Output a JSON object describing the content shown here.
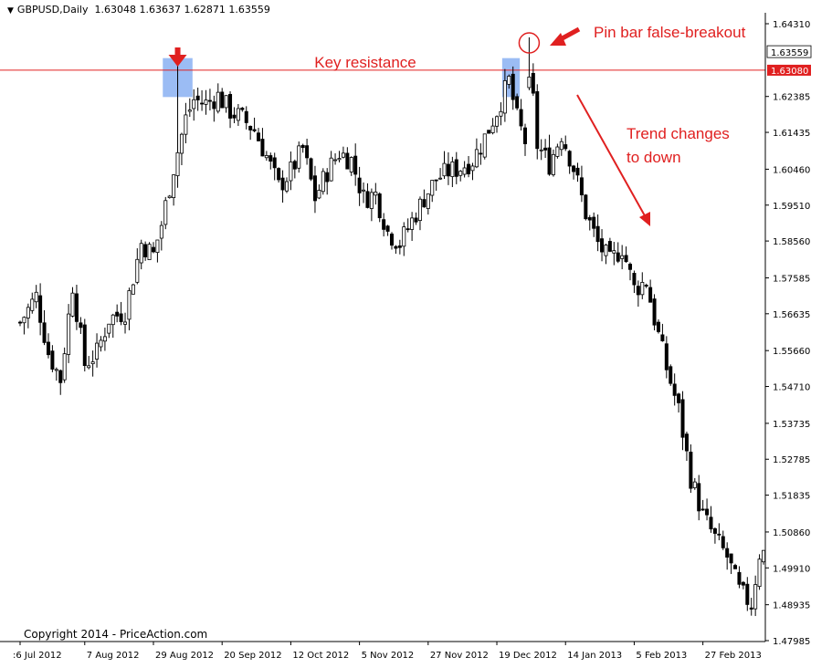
{
  "header": {
    "symbol": "GBPUSD,Daily",
    "ohlc": "1.63048 1.63637 1.62871 1.63559",
    "menu_icon": "triangle-down-icon"
  },
  "copyright": "Copyright 2014 - PriceAction.com",
  "colors": {
    "candle": "#000000",
    "resistance": "#e02020",
    "annotation": "#e02020",
    "highlight": "#7aa5f0",
    "price_label_bg": "#e02020"
  },
  "chart_data": {
    "type": "candlestick",
    "symbol": "GBPUSD",
    "timeframe": "Daily",
    "ylim": [
      1.4795,
      1.644
    ],
    "yticks": [
      "1.64310",
      "1.63559",
      "1.63080",
      "1.62385",
      "1.61435",
      "1.60460",
      "1.59510",
      "1.58560",
      "1.57585",
      "1.56635",
      "1.55660",
      "1.54710",
      "1.53735",
      "1.52785",
      "1.51835",
      "1.50860",
      "1.49910",
      "1.48935",
      "1.47985"
    ],
    "ytick_values": [
      1.6431,
      1.63559,
      1.6308,
      1.62385,
      1.61435,
      1.6046,
      1.5951,
      1.5856,
      1.57585,
      1.56635,
      1.5566,
      1.5471,
      1.53735,
      1.52785,
      1.51835,
      1.5086,
      1.4991,
      1.48935,
      1.47985
    ],
    "xticks": [
      ":6 Jul 2012",
      "7 Aug 2012",
      "29 Aug 2012",
      "20 Sep 2012",
      "12 Oct 2012",
      "5 Nov 2012",
      "27 Nov 2012",
      "19 Dec 2012",
      "14 Jan 2013",
      "5 Feb 2013",
      "27 Feb 2013"
    ],
    "xtick_index": [
      0,
      16,
      33,
      50,
      67,
      84,
      101,
      118,
      135,
      152,
      169
    ],
    "grid": false,
    "current_price": "1.63559",
    "resistance_level": 1.6308,
    "resistance_label": "1.63080",
    "annotations": {
      "key_resistance": "Key resistance",
      "pin_bar": "Pin bar false-breakout",
      "trend_line1": "Trend changes",
      "trend_line2": "to down"
    },
    "highlight_indices": [
      [
        36,
        42
      ],
      [
        120,
        123
      ]
    ],
    "pin_bar_index": 126,
    "close_path": [
      [
        0,
        1.564
      ],
      [
        4,
        1.571
      ],
      [
        7,
        1.556
      ],
      [
        10,
        1.549
      ],
      [
        13,
        1.574
      ],
      [
        16,
        1.553
      ],
      [
        19,
        1.556
      ],
      [
        22,
        1.565
      ],
      [
        26,
        1.567
      ],
      [
        30,
        1.585
      ],
      [
        33,
        1.582
      ],
      [
        35,
        1.59
      ],
      [
        38,
        1.605
      ],
      [
        41,
        1.618
      ],
      [
        43,
        1.623
      ],
      [
        46,
        1.622
      ],
      [
        49,
        1.624
      ],
      [
        52,
        1.62
      ],
      [
        55,
        1.618
      ],
      [
        58,
        1.615
      ],
      [
        61,
        1.608
      ],
      [
        64,
        1.6
      ],
      [
        67,
        1.604
      ],
      [
        70,
        1.61
      ],
      [
        73,
        1.597
      ],
      [
        76,
        1.604
      ],
      [
        79,
        1.609
      ],
      [
        82,
        1.607
      ],
      [
        85,
        1.597
      ],
      [
        88,
        1.598
      ],
      [
        91,
        1.588
      ],
      [
        94,
        1.585
      ],
      [
        97,
        1.591
      ],
      [
        100,
        1.597
      ],
      [
        103,
        1.602
      ],
      [
        106,
        1.604
      ],
      [
        109,
        1.605
      ],
      [
        112,
        1.607
      ],
      [
        115,
        1.613
      ],
      [
        118,
        1.62
      ],
      [
        121,
        1.628
      ],
      [
        123,
        1.618
      ],
      [
        125,
        1.612
      ],
      [
        126,
        1.6345
      ],
      [
        128,
        1.611
      ],
      [
        131,
        1.606
      ],
      [
        134,
        1.614
      ],
      [
        137,
        1.605
      ],
      [
        140,
        1.593
      ],
      [
        143,
        1.585
      ],
      [
        146,
        1.58
      ],
      [
        149,
        1.584
      ],
      [
        152,
        1.573
      ],
      [
        155,
        1.575
      ],
      [
        157,
        1.565
      ],
      [
        160,
        1.552
      ],
      [
        163,
        1.541
      ],
      [
        166,
        1.523
      ],
      [
        169,
        1.513
      ],
      [
        172,
        1.507
      ],
      [
        175,
        1.502
      ],
      [
        178,
        1.493
      ],
      [
        181,
        1.4895
      ],
      [
        183,
        1.503
      ]
    ],
    "seed": 7
  }
}
